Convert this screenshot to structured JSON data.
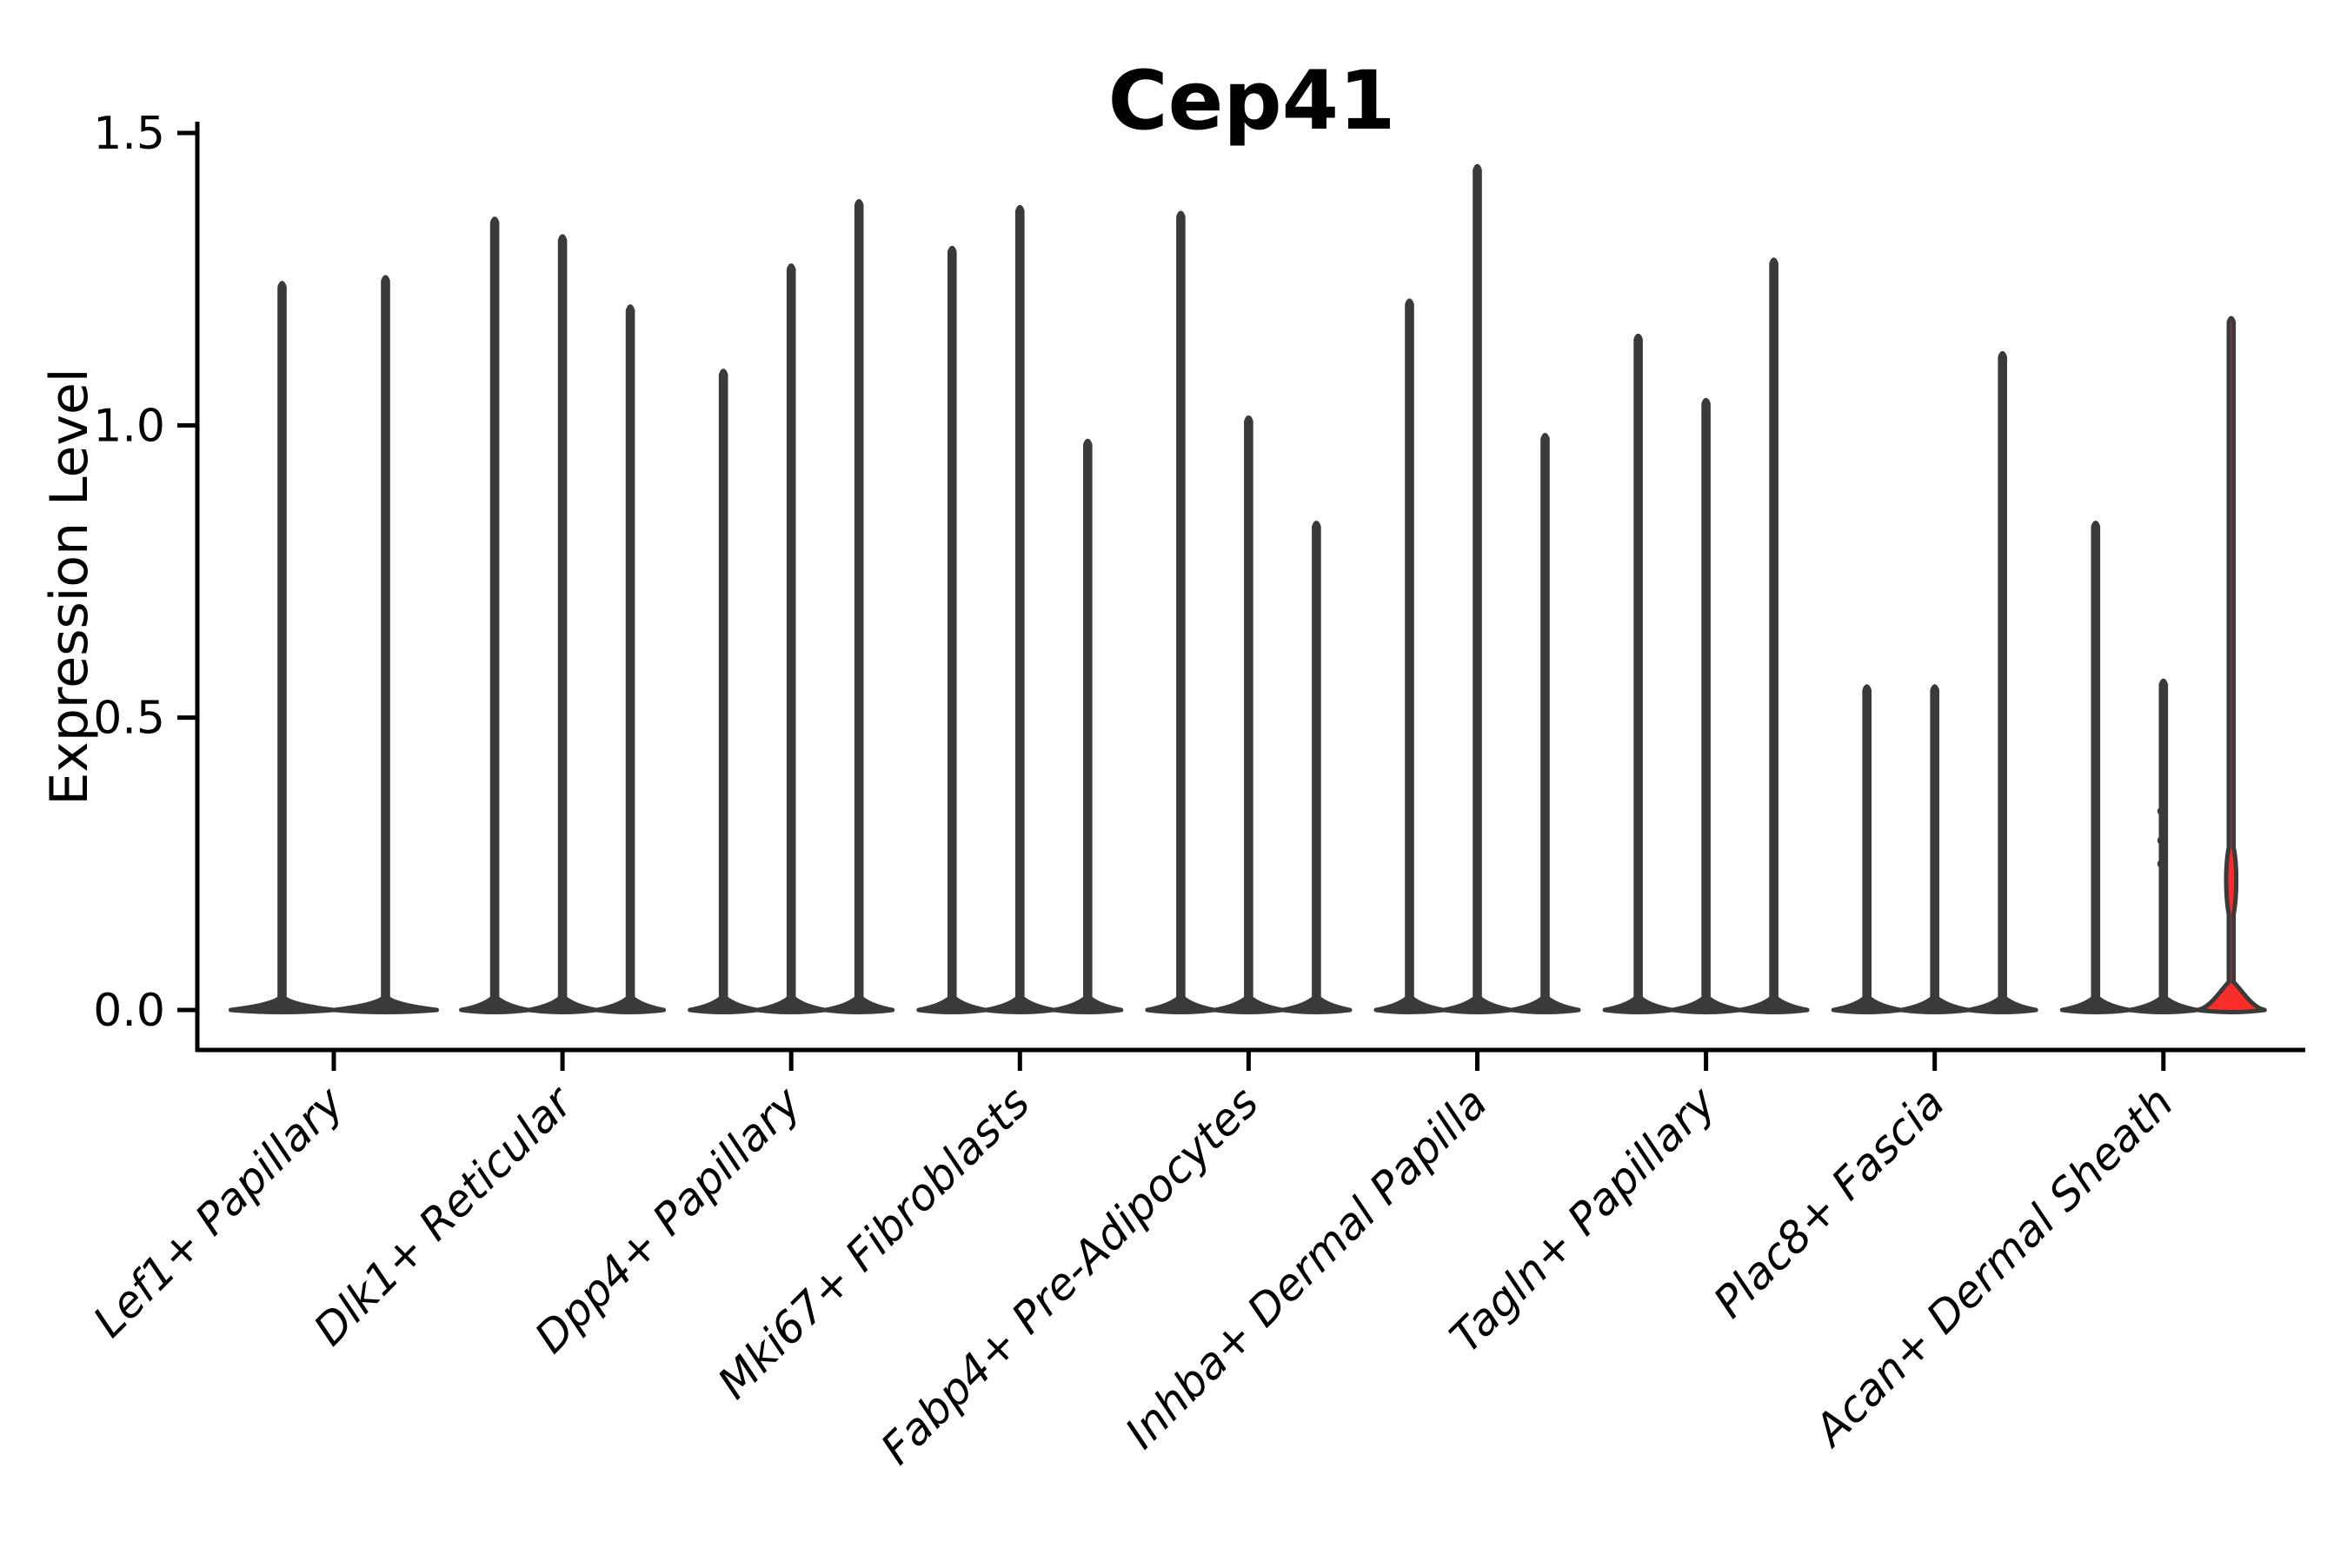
{
  "title": "Cep41",
  "ylabel": "Expression Level",
  "colors": {
    "background": "#ffffff",
    "axis": "#000000",
    "text": "#000000",
    "violin_stroke": "#3a3a3a",
    "violin_fill": "#3a3a3a",
    "highlight_fill": "#fa2d28"
  },
  "chart_data": {
    "type": "violin",
    "title": "Cep41",
    "xlabel": "",
    "ylabel": "Expression Level",
    "ylim": [
      0,
      1.5
    ],
    "yticks": [
      0.0,
      0.5,
      1.0,
      1.5
    ],
    "ytick_labels": [
      "0.0",
      "0.5",
      "1.0",
      "1.5"
    ],
    "grid": false,
    "legend": "none",
    "note": "Single-cell expression violins: nearly all density mass at 0 (flat pancake at baseline) with a thin spike up to each violin's maximum; last violin of last group is highlighted red with a small flared red base.",
    "categories": [
      "Lef1+ Papillary",
      "Dlk1+ Reticular",
      "Dpp4+ Papillary",
      "Mki67+ Fibroblasts",
      "Fabp4+ Pre-Adipocytes",
      "Inhba+ Dermal Papilla",
      "Tagln+ Papillary",
      "Plac8+ Fascia",
      "Acan+ Dermal Sheath"
    ],
    "groups": [
      {
        "category": "Lef1+ Papillary",
        "violins": [
          {
            "peak": 1.25
          },
          {
            "peak": 1.26
          }
        ]
      },
      {
        "category": "Dlk1+ Reticular",
        "violins": [
          {
            "peak": 1.36
          },
          {
            "peak": 1.33
          },
          {
            "peak": 1.21
          }
        ]
      },
      {
        "category": "Dpp4+ Papillary",
        "violins": [
          {
            "peak": 1.1
          },
          {
            "peak": 1.28
          },
          {
            "peak": 1.39
          }
        ]
      },
      {
        "category": "Mki67+ Fibroblasts",
        "violins": [
          {
            "peak": 1.31
          },
          {
            "peak": 1.38
          },
          {
            "peak": 0.98
          }
        ]
      },
      {
        "category": "Fabp4+ Pre-Adipocytes",
        "violins": [
          {
            "peak": 1.37
          },
          {
            "peak": 1.02
          },
          {
            "peak": 0.84
          }
        ]
      },
      {
        "category": "Inhba+ Dermal Papilla",
        "violins": [
          {
            "peak": 1.22
          },
          {
            "peak": 1.45
          },
          {
            "peak": 0.99
          }
        ]
      },
      {
        "category": "Tagln+ Papillary",
        "violins": [
          {
            "peak": 1.16
          },
          {
            "peak": 1.05
          },
          {
            "peak": 1.29
          }
        ]
      },
      {
        "category": "Plac8+ Fascia",
        "violins": [
          {
            "peak": 0.56
          },
          {
            "peak": 0.56
          },
          {
            "peak": 1.13
          }
        ]
      },
      {
        "category": "Acan+ Dermal Sheath",
        "violins": [
          {
            "peak": 0.84
          },
          {
            "peak": 0.57,
            "dot_values": [
              0.34,
              0.29,
              0.25
            ]
          },
          {
            "peak": 1.19,
            "highlight": true,
            "bulge_at": 0.23
          }
        ]
      }
    ],
    "baseline_value": 0
  }
}
